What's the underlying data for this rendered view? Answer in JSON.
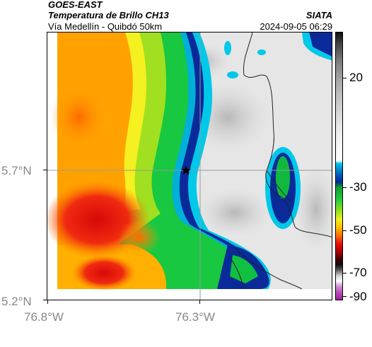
{
  "header": {
    "satellite": "GOES-EAST",
    "product": "Temperatura de Brillo CH13",
    "organization": "SIATA",
    "route": "Vía Medellín - Quibdó 50km",
    "timestamp": "2024-09-05 06:29"
  },
  "map": {
    "latitude_labels": [
      "5.7°N",
      "5.2°N"
    ],
    "longitude_labels": [
      "76.8°W",
      "76.3°W"
    ],
    "marker_icon": "star-marker-icon",
    "reference_lines": [
      "lat 5.7°N",
      "lon 76.3°W"
    ]
  },
  "colorbar": {
    "tick_labels": [
      "20",
      "-30",
      "-50",
      "-70",
      "-90"
    ],
    "colors": {
      "warm": "#e8e8e8",
      "cold_cyan": "#00c8e0",
      "dark_blue": "#001a7a",
      "green": "#10c040",
      "yellow": "#f0f020",
      "orange": "#ff9a00",
      "red": "#e81010",
      "magenta": "#c050c0"
    }
  }
}
